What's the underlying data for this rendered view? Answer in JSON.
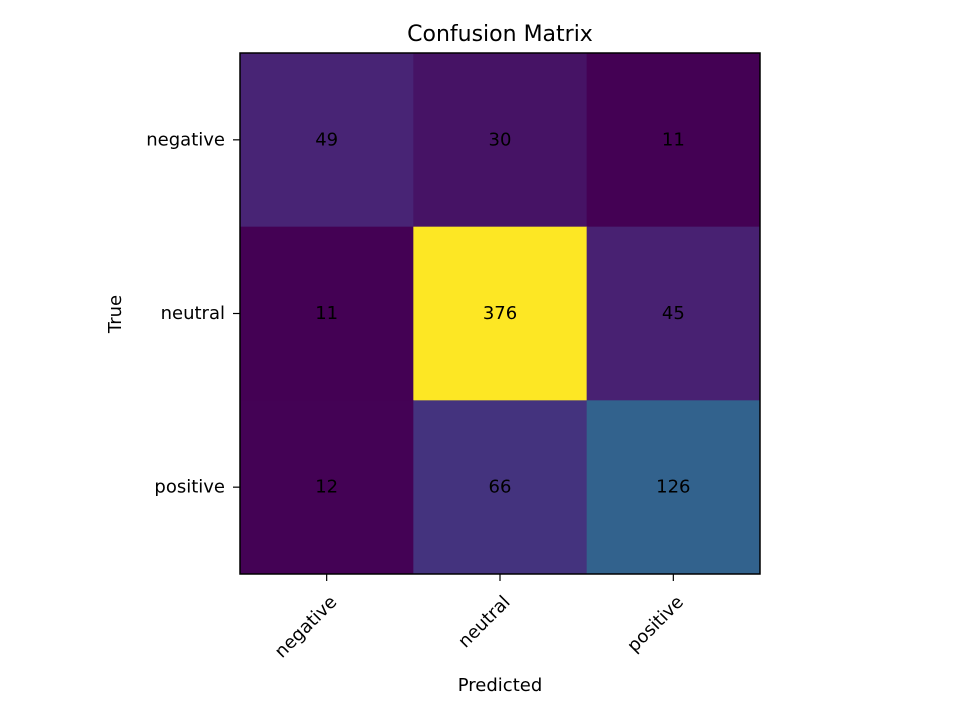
{
  "chart_data": {
    "type": "heatmap",
    "title": "Confusion Matrix",
    "xlabel": "Predicted",
    "ylabel": "True",
    "x_categories": [
      "negative",
      "neutral",
      "positive"
    ],
    "y_categories": [
      "negative",
      "neutral",
      "positive"
    ],
    "values": [
      [
        49,
        30,
        11
      ],
      [
        11,
        376,
        45
      ],
      [
        12,
        66,
        126
      ]
    ],
    "colormap": "viridis",
    "grid": false,
    "legend": "none"
  }
}
